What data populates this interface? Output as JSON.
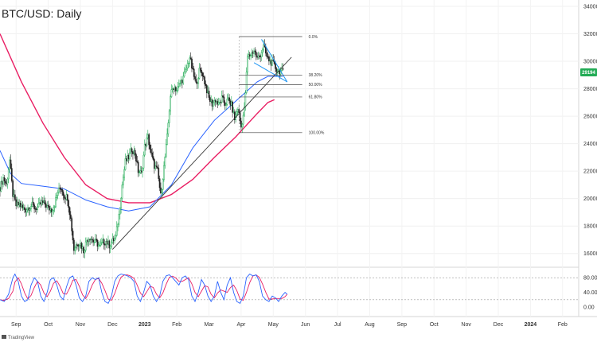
{
  "chart_data": {
    "type": "candlestick",
    "title": "BTC/USD: Daily",
    "symbol": "BTC/USD",
    "timeframe": "Daily",
    "brand": "TradingView",
    "price_axis": {
      "ylim": [
        15000,
        34000
      ],
      "ticks": [
        "34000",
        "32000",
        "30000",
        "28000",
        "26000",
        "24000",
        "22000",
        "20000",
        "18000",
        "16000"
      ]
    },
    "time_axis": {
      "labels": [
        "Sep",
        "Oct",
        "Nov",
        "Dec",
        "2023",
        "Feb",
        "Mar",
        "Apr",
        "May",
        "Jun",
        "Jul",
        "Aug",
        "Sep",
        "Oct",
        "Nov",
        "Dec",
        "2024",
        "Feb"
      ],
      "bold_labels": [
        "2023",
        "2024"
      ]
    },
    "current_price": {
      "label": "29194",
      "value": 29194,
      "color": "#22ab55"
    },
    "price_path": [
      [
        0,
        20800
      ],
      [
        3,
        21500
      ],
      [
        6,
        21000
      ],
      [
        9,
        22800
      ],
      [
        12,
        20300
      ],
      [
        15,
        19500
      ],
      [
        18,
        19600
      ],
      [
        21,
        19300
      ],
      [
        24,
        19200
      ],
      [
        27,
        19400
      ],
      [
        30,
        19500
      ],
      [
        33,
        19300
      ],
      [
        36,
        19400
      ],
      [
        39,
        19700
      ],
      [
        42,
        19600
      ],
      [
        45,
        19300
      ],
      [
        48,
        19200
      ],
      [
        51,
        19600
      ],
      [
        54,
        20500
      ],
      [
        57,
        20800
      ],
      [
        60,
        20200
      ],
      [
        63,
        20100
      ],
      [
        66,
        18500
      ],
      [
        69,
        16300
      ],
      [
        72,
        16800
      ],
      [
        75,
        16700
      ],
      [
        78,
        16200
      ],
      [
        81,
        17000
      ],
      [
        84,
        17200
      ],
      [
        87,
        16900
      ],
      [
        90,
        16800
      ],
      [
        93,
        16500
      ],
      [
        96,
        16800
      ],
      [
        99,
        16900
      ],
      [
        102,
        16600
      ],
      [
        105,
        16900
      ],
      [
        108,
        17200
      ],
      [
        111,
        18800
      ],
      [
        114,
        21000
      ],
      [
        117,
        22700
      ],
      [
        120,
        23000
      ],
      [
        123,
        23600
      ],
      [
        126,
        23300
      ],
      [
        129,
        22000
      ],
      [
        132,
        21800
      ],
      [
        135,
        23800
      ],
      [
        138,
        24500
      ],
      [
        141,
        23200
      ],
      [
        144,
        22400
      ],
      [
        147,
        22000
      ],
      [
        150,
        20200
      ],
      [
        153,
        22300
      ],
      [
        156,
        24500
      ],
      [
        159,
        27500
      ],
      [
        162,
        28200
      ],
      [
        165,
        27900
      ],
      [
        168,
        28400
      ],
      [
        171,
        28800
      ],
      [
        174,
        29500
      ],
      [
        177,
        30300
      ],
      [
        180,
        29200
      ],
      [
        183,
        28300
      ],
      [
        186,
        29300
      ],
      [
        189,
        29100
      ],
      [
        192,
        28200
      ],
      [
        195,
        27300
      ],
      [
        198,
        26900
      ],
      [
        201,
        27200
      ],
      [
        204,
        26800
      ],
      [
        207,
        27300
      ],
      [
        210,
        26900
      ],
      [
        213,
        27200
      ],
      [
        216,
        26800
      ],
      [
        219,
        25800
      ],
      [
        222,
        26600
      ],
      [
        225,
        25200
      ],
      [
        228,
        26500
      ],
      [
        231,
        30300
      ],
      [
        234,
        30500
      ],
      [
        237,
        30800
      ],
      [
        240,
        30200
      ],
      [
        243,
        30500
      ],
      [
        246,
        31100
      ],
      [
        249,
        30300
      ],
      [
        252,
        30000
      ],
      [
        255,
        29800
      ],
      [
        258,
        29400
      ],
      [
        261,
        29300
      ],
      [
        264,
        29200
      ]
    ],
    "indicators": [
      {
        "name": "EMA 100",
        "color": "#2962ff",
        "label_shown": false
      },
      {
        "name": "EMA 200",
        "color": "#e91e63",
        "label_shown": false
      }
    ],
    "ema100": [
      [
        0,
        23500
      ],
      [
        10,
        21800
      ],
      [
        20,
        21100
      ],
      [
        40,
        20900
      ],
      [
        60,
        20700
      ],
      [
        80,
        19900
      ],
      [
        100,
        19400
      ],
      [
        120,
        19100
      ],
      [
        140,
        19400
      ],
      [
        160,
        21000
      ],
      [
        180,
        23700
      ],
      [
        200,
        25700
      ],
      [
        220,
        27100
      ],
      [
        240,
        28500
      ],
      [
        250,
        28900
      ],
      [
        264,
        28900
      ]
    ],
    "ema200": [
      [
        0,
        32000
      ],
      [
        20,
        28500
      ],
      [
        40,
        25500
      ],
      [
        60,
        23000
      ],
      [
        80,
        21000
      ],
      [
        100,
        20000
      ],
      [
        120,
        19700
      ],
      [
        140,
        19700
      ],
      [
        160,
        20300
      ],
      [
        180,
        21400
      ],
      [
        200,
        23000
      ],
      [
        220,
        24500
      ],
      [
        240,
        26200
      ],
      [
        250,
        27000
      ],
      [
        256,
        27200
      ]
    ],
    "trendline": {
      "from": [
        105,
        16300
      ],
      "to": [
        272,
        30300
      ]
    },
    "triangle": {
      "upper": {
        "from": [
          244,
          31600
        ],
        "to": [
          268,
          28500
        ]
      },
      "lower": {
        "from": [
          237,
          29900
        ],
        "to": [
          268,
          28500
        ]
      }
    },
    "fibonacci": [
      {
        "level": "0.0%",
        "price": 31800
      },
      {
        "level": "38.20%",
        "price": 29000
      },
      {
        "level": "50.00%",
        "price": 28300
      },
      {
        "level": "61.80%",
        "price": 27400
      },
      {
        "level": "100.00%",
        "price": 24800
      }
    ],
    "fib_range": {
      "x_start": 223,
      "x_end": 282
    },
    "stochastic": {
      "ylim": [
        0,
        100
      ],
      "ticks": [
        "80.00",
        "40.00",
        "0.00"
      ],
      "levels": [
        80,
        20
      ],
      "k_color": "#2962ff",
      "d_color": "#e91e63",
      "k": [
        [
          0,
          20
        ],
        [
          4,
          15
        ],
        [
          8,
          35
        ],
        [
          12,
          80
        ],
        [
          14,
          90
        ],
        [
          17,
          70
        ],
        [
          20,
          30
        ],
        [
          23,
          15
        ],
        [
          26,
          20
        ],
        [
          29,
          60
        ],
        [
          32,
          80
        ],
        [
          35,
          70
        ],
        [
          38,
          30
        ],
        [
          41,
          15
        ],
        [
          44,
          40
        ],
        [
          47,
          75
        ],
        [
          50,
          80
        ],
        [
          53,
          60
        ],
        [
          56,
          30
        ],
        [
          59,
          20
        ],
        [
          62,
          55
        ],
        [
          65,
          80
        ],
        [
          68,
          85
        ],
        [
          71,
          60
        ],
        [
          74,
          25
        ],
        [
          77,
          15
        ],
        [
          80,
          30
        ],
        [
          83,
          70
        ],
        [
          86,
          80
        ],
        [
          89,
          75
        ],
        [
          92,
          80
        ],
        [
          95,
          40
        ],
        [
          98,
          15
        ],
        [
          101,
          10
        ],
        [
          104,
          30
        ],
        [
          107,
          70
        ],
        [
          110,
          85
        ],
        [
          113,
          90
        ],
        [
          116,
          88
        ],
        [
          119,
          85
        ],
        [
          122,
          80
        ],
        [
          125,
          70
        ],
        [
          128,
          30
        ],
        [
          131,
          15
        ],
        [
          134,
          40
        ],
        [
          137,
          70
        ],
        [
          140,
          60
        ],
        [
          143,
          30
        ],
        [
          146,
          15
        ],
        [
          149,
          30
        ],
        [
          152,
          70
        ],
        [
          155,
          85
        ],
        [
          158,
          88
        ],
        [
          161,
          80
        ],
        [
          164,
          70
        ],
        [
          167,
          60
        ],
        [
          170,
          80
        ],
        [
          173,
          85
        ],
        [
          176,
          75
        ],
        [
          179,
          30
        ],
        [
          182,
          15
        ],
        [
          185,
          40
        ],
        [
          188,
          75
        ],
        [
          191,
          60
        ],
        [
          194,
          30
        ],
        [
          197,
          15
        ],
        [
          200,
          30
        ],
        [
          203,
          70
        ],
        [
          206,
          40
        ],
        [
          209,
          20
        ],
        [
          212,
          60
        ],
        [
          215,
          80
        ],
        [
          218,
          40
        ],
        [
          221,
          15
        ],
        [
          224,
          10
        ],
        [
          227,
          30
        ],
        [
          230,
          80
        ],
        [
          233,
          90
        ],
        [
          236,
          85
        ],
        [
          239,
          88
        ],
        [
          242,
          70
        ],
        [
          245,
          30
        ],
        [
          248,
          20
        ],
        [
          251,
          15
        ],
        [
          254,
          30
        ],
        [
          257,
          25
        ],
        [
          260,
          15
        ],
        [
          263,
          30
        ],
        [
          266,
          40
        ],
        [
          268,
          35
        ]
      ]
    }
  }
}
